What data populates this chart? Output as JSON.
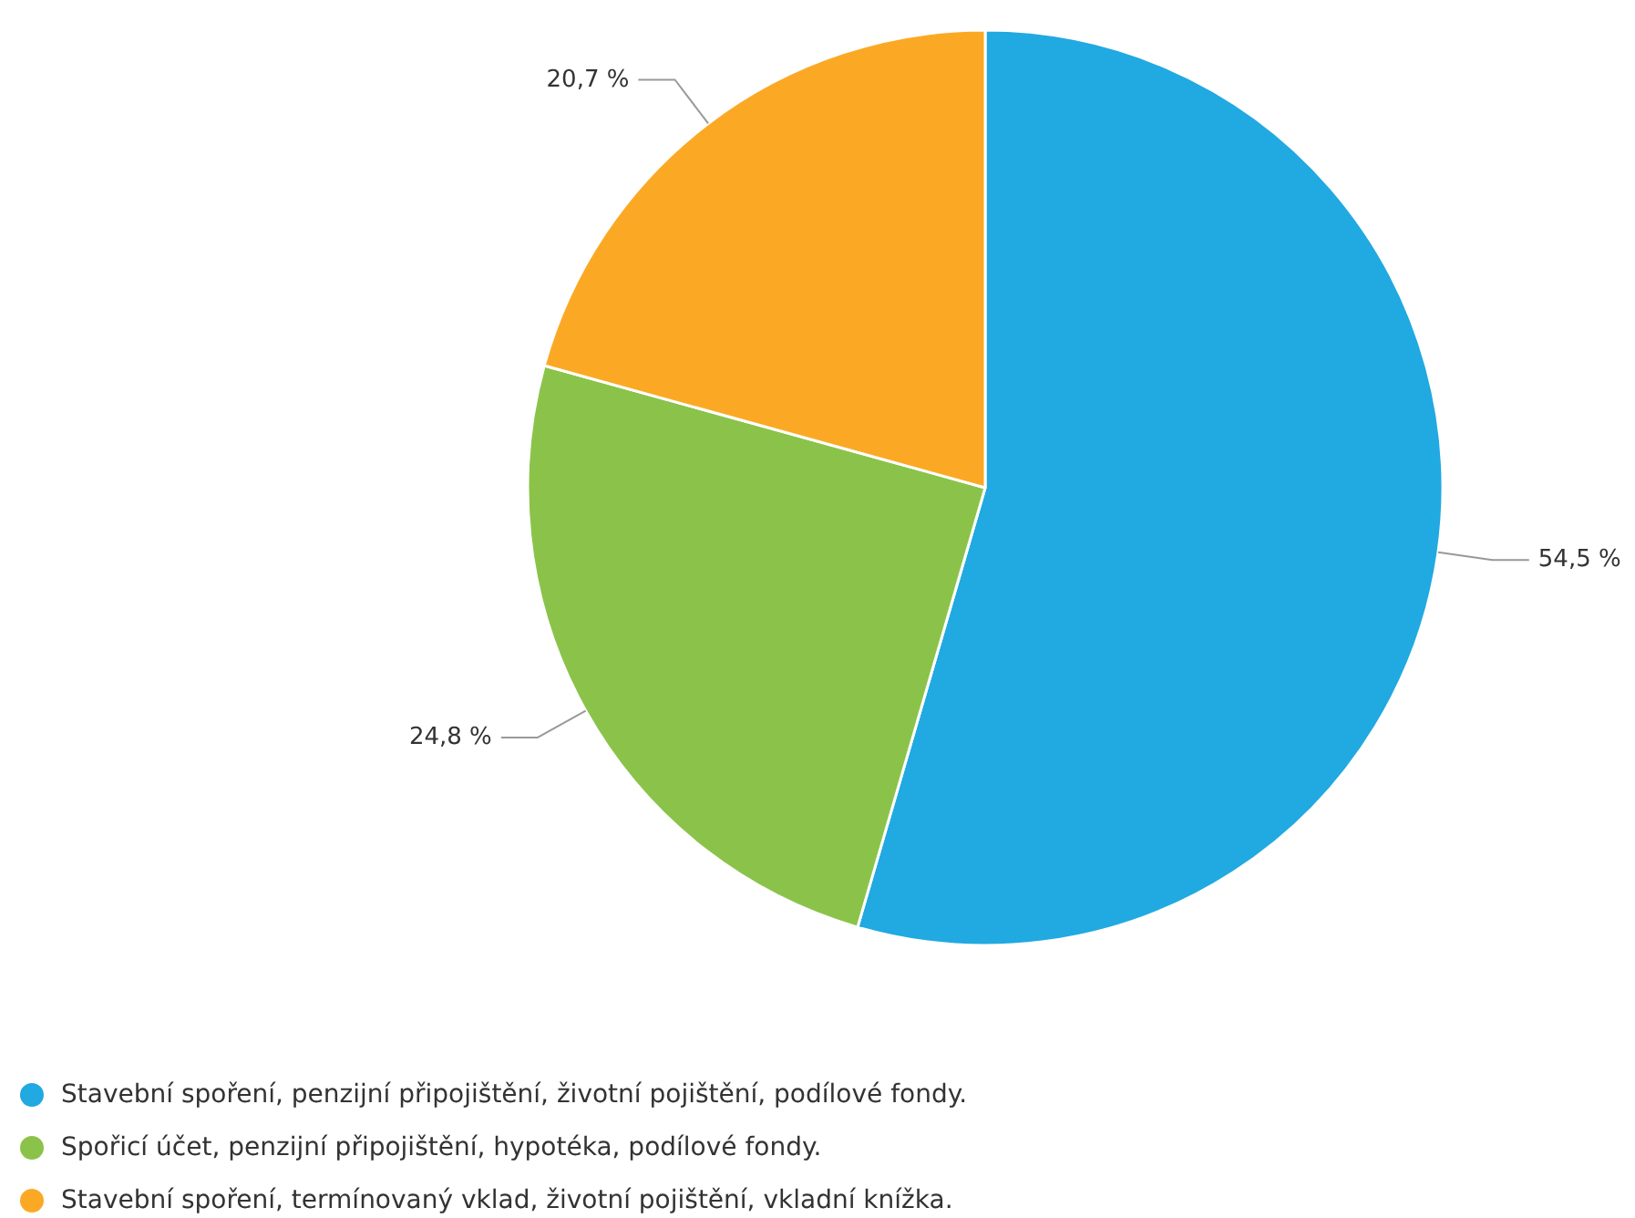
{
  "chart_data": {
    "type": "pie",
    "categories": [
      "Stavební spoření, penzijní připojištění, životní pojištění, podílové fondy.",
      "Spořicí účet, penzijní připojištění, hypotéka, podílové fondy.",
      "Stavební spoření, termínovaný vklad, životní pojištění, vkladní knížka."
    ],
    "values": [
      54.5,
      24.8,
      20.7
    ],
    "colors": [
      "#21a9e1",
      "#8bc34a",
      "#fba925"
    ],
    "value_labels": [
      "54,5 %",
      "24,8 %",
      "20,7 %"
    ],
    "legend": "bottom"
  }
}
